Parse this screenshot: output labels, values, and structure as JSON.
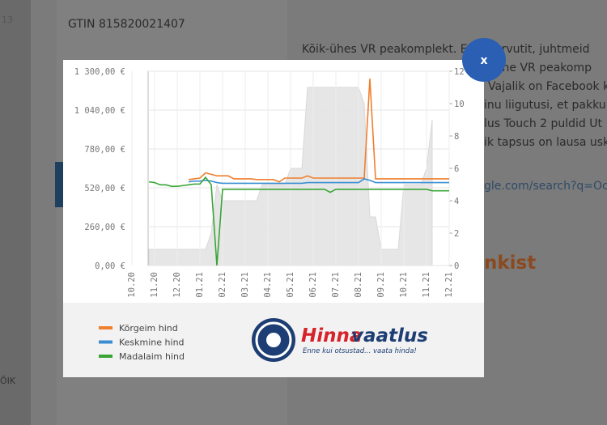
{
  "background": {
    "corner_number": "13",
    "gtin": "GTIN 815820021407",
    "paragraph_lines": [
      "Kõik-ühes VR peakomplekt. E",
      "e arvutit, juhtmeid",
      "mine VR peakomp",
      "Vajalik on Facebook k",
      "inu liigutusi, et pakku",
      "lus Touch 2 puldid Ut",
      "ik tapsus on lausa usk"
    ],
    "link_fragment": "gle.com/search?q=Ocul",
    "heading_fragment": "nkist",
    "side_label": "ÕIK"
  },
  "modal": {
    "close_label": "x",
    "logo": {
      "brand_part1": "Hinna",
      "brand_part2": "vaatlus",
      "tagline": "Enne kui otsustad... vaata hinda!"
    }
  },
  "chart_data": {
    "type": "line",
    "categories": [
      "10.20",
      null,
      null,
      null,
      "11.20",
      null,
      null,
      null,
      "12.20",
      null,
      null,
      null,
      "01.21",
      null,
      null,
      null,
      "02.21",
      null,
      null,
      null,
      "03.21",
      null,
      null,
      null,
      "04.21",
      null,
      null,
      null,
      "05.21",
      null,
      null,
      null,
      "06.21",
      null,
      null,
      null,
      "07.21",
      null,
      null,
      null,
      "08.21",
      null,
      null,
      null,
      "09.21",
      null,
      null,
      null,
      "10.21",
      null,
      null,
      null,
      "11.21",
      null,
      null,
      null,
      "12.21"
    ],
    "series": [
      {
        "name": "Kõrgeim hind",
        "color": "#f07f2f",
        "values": [
          null,
          null,
          null,
          null,
          null,
          null,
          null,
          null,
          null,
          null,
          575,
          580,
          585,
          620,
          610,
          600,
          600,
          600,
          580,
          580,
          580,
          580,
          575,
          575,
          575,
          575,
          560,
          585,
          585,
          585,
          585,
          600,
          585,
          585,
          585,
          585,
          585,
          585,
          585,
          585,
          585,
          585,
          1250,
          580,
          580,
          580,
          580,
          580,
          580,
          580,
          580,
          580,
          580,
          580,
          580,
          580,
          580
        ]
      },
      {
        "name": "Keskmine hind",
        "color": "#3b8fd1",
        "values": [
          null,
          null,
          null,
          null,
          null,
          null,
          null,
          null,
          null,
          null,
          560,
          565,
          565,
          570,
          565,
          555,
          550,
          550,
          550,
          550,
          550,
          550,
          550,
          550,
          550,
          550,
          550,
          550,
          550,
          550,
          550,
          555,
          555,
          555,
          555,
          555,
          555,
          555,
          555,
          555,
          555,
          580,
          570,
          555,
          555,
          555,
          555,
          555,
          555,
          555,
          555,
          555,
          555,
          555,
          555,
          555,
          555
        ]
      },
      {
        "name": "Madalaim hind",
        "color": "#3aa537",
        "values": [
          null,
          null,
          null,
          560,
          555,
          540,
          540,
          530,
          530,
          535,
          540,
          545,
          545,
          590,
          540,
          0,
          510,
          510,
          510,
          510,
          510,
          510,
          510,
          510,
          510,
          510,
          510,
          510,
          510,
          510,
          510,
          510,
          510,
          510,
          510,
          490,
          510,
          510,
          510,
          510,
          510,
          510,
          510,
          510,
          510,
          510,
          510,
          510,
          510,
          510,
          510,
          510,
          510,
          500,
          500,
          500,
          500
        ]
      },
      {
        "color": "#e6e6e6",
        "axis": "y2",
        "values": [
          null,
          null,
          null,
          1,
          1,
          1,
          1,
          1,
          1,
          1,
          1,
          1,
          1,
          1,
          2,
          5,
          4,
          4,
          4,
          4,
          4,
          4,
          4,
          5,
          5,
          5,
          5,
          5,
          6,
          6,
          6,
          11,
          11,
          11,
          11,
          11,
          11,
          11,
          11,
          11,
          11,
          10,
          3,
          3,
          1,
          1,
          1,
          1,
          5,
          5,
          5,
          5,
          6,
          9,
          null,
          null,
          null
        ]
      }
    ],
    "ylim": [
      0,
      1300
    ],
    "yticks": [
      {
        "value": 0,
        "label": "0,00 €"
      },
      {
        "value": 260,
        "label": "260,00 €"
      },
      {
        "value": 520,
        "label": "520,00 €"
      },
      {
        "value": 780,
        "label": "780,00 €"
      },
      {
        "value": 1040,
        "label": "1 040,00 €"
      },
      {
        "value": 1300,
        "label": "1 300,00 €"
      }
    ],
    "y2lim": [
      0,
      12
    ],
    "y2ticks": [
      0,
      2,
      4,
      6,
      8,
      10,
      12
    ],
    "grid": true
  }
}
